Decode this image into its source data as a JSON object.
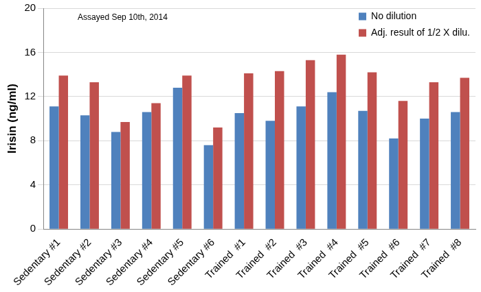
{
  "chart_data": {
    "type": "bar",
    "annotation": "Assayed Sep 10th, 2014",
    "y_label": "Irisin (ng/ml)",
    "categories": [
      "Sedentary #1",
      "Sedentary #2",
      "Sedentary #3",
      "Sedentary #4",
      "Sedentary #5",
      "Sedentary #6",
      "Trained  #1",
      "Trained  #2",
      "Trained  #3",
      "Trained  #4",
      "Trained  #5",
      "Trained  #6",
      "Trained  #7",
      "Trained  #8"
    ],
    "series": [
      {
        "name": "No dilution",
        "color": "#4f81bd",
        "values": [
          11.1,
          10.3,
          8.8,
          10.6,
          12.8,
          7.6,
          10.5,
          9.8,
          11.1,
          12.4,
          10.7,
          8.2,
          10.0,
          10.6
        ]
      },
      {
        "name": "Adj. result of 1/2 X dilu.",
        "color": "#c0504d",
        "values": [
          13.9,
          13.3,
          9.7,
          11.4,
          13.9,
          9.2,
          14.1,
          14.3,
          15.3,
          15.8,
          14.2,
          11.6,
          13.3,
          13.7
        ]
      }
    ],
    "ylim": [
      0,
      20
    ],
    "yticks": [
      0,
      4,
      8,
      12,
      16,
      20
    ],
    "grid": true,
    "legend": "upper right"
  }
}
